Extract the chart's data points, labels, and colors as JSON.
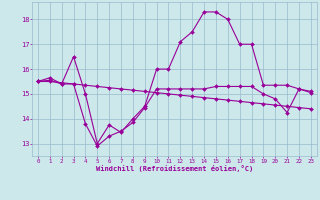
{
  "xlabel": "Windchill (Refroidissement éolien,°C)",
  "bg_color": "#cce8ea",
  "line_color": "#990099",
  "grid_color": "#99bbcc",
  "ylim": [
    12.5,
    18.7
  ],
  "xlim": [
    -0.5,
    23.5
  ],
  "yticks": [
    13,
    14,
    15,
    16,
    17,
    18
  ],
  "xticks": [
    0,
    1,
    2,
    3,
    4,
    5,
    6,
    7,
    8,
    9,
    10,
    11,
    12,
    13,
    14,
    15,
    16,
    17,
    18,
    19,
    20,
    21,
    22,
    23
  ],
  "series1": [
    15.5,
    15.65,
    15.4,
    16.5,
    15.0,
    13.0,
    13.75,
    13.45,
    14.0,
    14.5,
    16.0,
    16.0,
    17.1,
    17.5,
    18.3,
    18.3,
    18.0,
    17.0,
    17.0,
    15.35,
    15.35,
    15.35,
    15.2,
    15.1
  ],
  "series2": [
    15.5,
    15.5,
    15.45,
    15.4,
    15.35,
    15.3,
    15.25,
    15.2,
    15.15,
    15.1,
    15.05,
    15.0,
    14.95,
    14.9,
    14.85,
    14.8,
    14.75,
    14.7,
    14.65,
    14.6,
    14.55,
    14.5,
    14.45,
    14.4
  ],
  "series3": [
    15.5,
    15.55,
    15.4,
    15.4,
    13.8,
    12.9,
    13.3,
    13.5,
    13.85,
    14.45,
    15.2,
    15.2,
    15.2,
    15.2,
    15.2,
    15.3,
    15.3,
    15.3,
    15.3,
    15.0,
    14.8,
    14.25,
    15.2,
    15.05
  ]
}
